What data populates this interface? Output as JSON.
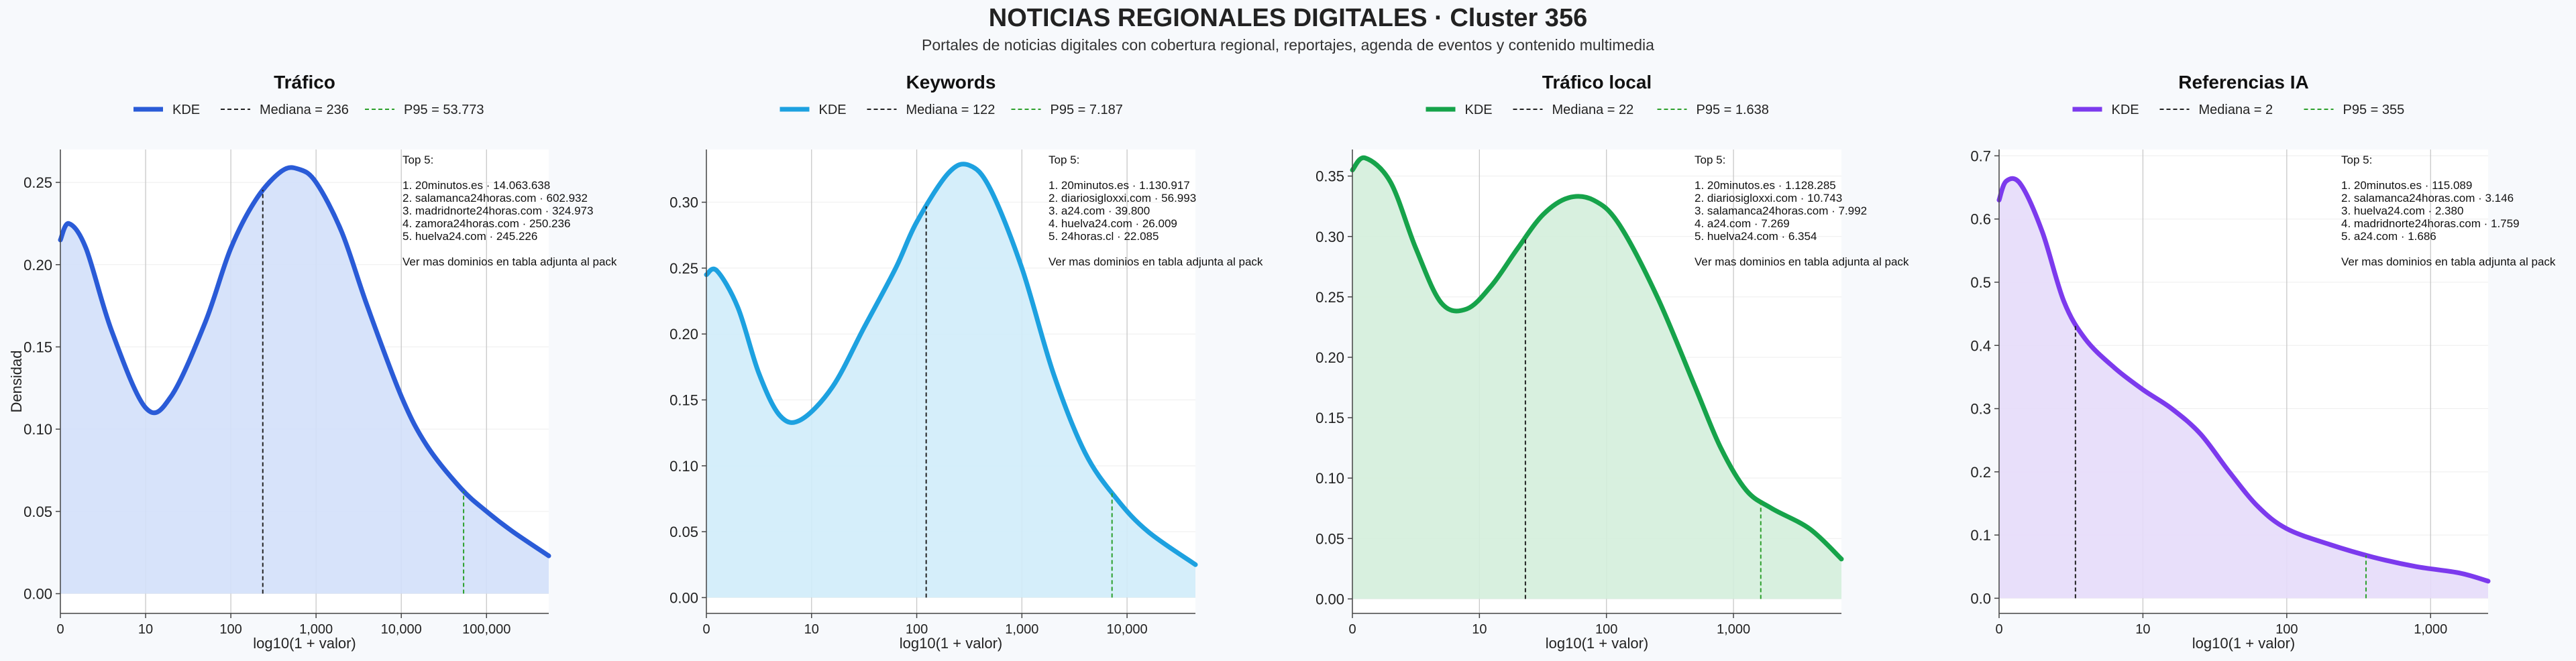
{
  "header": {
    "title": "NOTICIAS REGIONALES DIGITALES · Cluster 356",
    "subtitle": "Portales de noticias digitales con cobertura regional, reportajes, agenda de eventos y contenido multimedia"
  },
  "colors": {
    "background": "#f7f9fc",
    "median_line": "#222222",
    "p95_line": "#2ca02c",
    "grid": "#c8c8c8"
  },
  "chart_data": [
    {
      "type": "area",
      "title": "Tráfico",
      "color": "#2a5bd7",
      "fill": "#d3e0fa",
      "xlabel": "log10(1 + valor)",
      "ylabel": "Densidad",
      "xlim": [
        0,
        5.73
      ],
      "ylim": [
        -0.012,
        0.27
      ],
      "xticks": [
        0,
        1,
        2,
        3,
        4,
        5
      ],
      "xticklabels": [
        "0",
        "10",
        "100",
        "1,000",
        "10,000",
        "100,000"
      ],
      "yticks": [
        0,
        0.05,
        0.1,
        0.15,
        0.2,
        0.25
      ],
      "yticklabels": [
        "0.00",
        "0.05",
        "0.10",
        "0.15",
        "0.20",
        "0.25"
      ],
      "legend": {
        "placement": "top-center",
        "kde_label": "KDE",
        "median_label": "Mediana = 236",
        "p95_label": "P95 = 53.773"
      },
      "median_x": 2.375,
      "p95_x": 4.731,
      "kde_x": [
        0,
        0.1,
        0.3,
        0.6,
        1.0,
        1.3,
        1.7,
        2.0,
        2.3,
        2.6,
        2.8,
        3.0,
        3.3,
        3.6,
        4.0,
        4.3,
        4.7,
        5.0,
        5.3,
        5.73
      ],
      "kde_y": [
        0.215,
        0.225,
        0.21,
        0.16,
        0.113,
        0.12,
        0.165,
        0.21,
        0.24,
        0.257,
        0.258,
        0.25,
        0.22,
        0.175,
        0.12,
        0.09,
        0.064,
        0.05,
        0.038,
        0.023
      ],
      "annotation": [
        "Top 5:",
        "",
        "1. 20minutos.es · 14.063.638",
        "2. salamanca24horas.com · 602.932",
        "3. madridnorte24horas.com · 324.973",
        "4. zamora24horas.com · 250.236",
        "5. huelva24.com · 245.226",
        "",
        "Ver mas dominios en tabla adjunta al pack"
      ]
    },
    {
      "type": "area",
      "title": "Keywords",
      "color": "#1da1e0",
      "fill": "#d0ecfa",
      "xlabel": "log10(1 + valor)",
      "ylabel": "",
      "xlim": [
        0,
        4.65
      ],
      "ylim": [
        -0.012,
        0.34
      ],
      "xticks": [
        0,
        1,
        2,
        3,
        4
      ],
      "xticklabels": [
        "0",
        "10",
        "100",
        "1,000",
        "10,000"
      ],
      "yticks": [
        0,
        0.05,
        0.1,
        0.15,
        0.2,
        0.25,
        0.3
      ],
      "yticklabels": [
        "0.00",
        "0.05",
        "0.10",
        "0.15",
        "0.20",
        "0.25",
        "0.30"
      ],
      "legend": {
        "placement": "top-center",
        "kde_label": "KDE",
        "median_label": "Mediana = 122",
        "p95_label": "P95 = 7.187"
      },
      "median_x": 2.09,
      "p95_x": 3.857,
      "kde_x": [
        0,
        0.1,
        0.3,
        0.5,
        0.7,
        0.9,
        1.2,
        1.5,
        1.8,
        2.0,
        2.3,
        2.5,
        2.7,
        3.0,
        3.3,
        3.6,
        3.9,
        4.2,
        4.65
      ],
      "kde_y": [
        0.245,
        0.248,
        0.22,
        0.17,
        0.138,
        0.135,
        0.16,
        0.205,
        0.25,
        0.285,
        0.322,
        0.328,
        0.31,
        0.25,
        0.17,
        0.11,
        0.075,
        0.05,
        0.025
      ],
      "annotation": [
        "Top 5:",
        "",
        "1. 20minutos.es · 1.130.917",
        "2. diariosigloxxi.com · 56.993",
        "3. a24.com · 39.800",
        "4. huelva24.com · 26.009",
        "5. 24horas.cl · 22.085",
        "",
        "Ver mas dominios en tabla adjunta al pack"
      ]
    },
    {
      "type": "area",
      "title": "Tráfico local",
      "color": "#16a34a",
      "fill": "#d4eedb",
      "xlabel": "log10(1 + valor)",
      "ylabel": "",
      "xlim": [
        0,
        3.85
      ],
      "ylim": [
        -0.012,
        0.372
      ],
      "xticks": [
        0,
        1,
        2,
        3
      ],
      "xticklabels": [
        "0",
        "10",
        "100",
        "1,000"
      ],
      "yticks": [
        0,
        0.05,
        0.1,
        0.15,
        0.2,
        0.25,
        0.3,
        0.35
      ],
      "yticklabels": [
        "0.00",
        "0.05",
        "0.10",
        "0.15",
        "0.20",
        "0.25",
        "0.30",
        "0.35"
      ],
      "legend": {
        "placement": "top-center",
        "kde_label": "KDE",
        "median_label": "Mediana = 22",
        "p95_label": "P95 = 1.638"
      },
      "median_x": 1.362,
      "p95_x": 3.215,
      "kde_x": [
        0,
        0.1,
        0.3,
        0.5,
        0.7,
        0.9,
        1.1,
        1.3,
        1.5,
        1.7,
        1.9,
        2.1,
        2.4,
        2.7,
        2.9,
        3.1,
        3.3,
        3.6,
        3.85
      ],
      "kde_y": [
        0.355,
        0.365,
        0.345,
        0.29,
        0.245,
        0.24,
        0.26,
        0.29,
        0.318,
        0.332,
        0.33,
        0.31,
        0.25,
        0.175,
        0.125,
        0.09,
        0.075,
        0.058,
        0.033
      ],
      "annotation": [
        "Top 5:",
        "",
        "1. 20minutos.es · 1.128.285",
        "2. diariosigloxxi.com · 10.743",
        "3. salamanca24horas.com · 7.992",
        "4. a24.com · 7.269",
        "5. huelva24.com · 6.354",
        "",
        "Ver mas dominios en tabla adjunta al pack"
      ]
    },
    {
      "type": "area",
      "title": "Referencias IA",
      "color": "#7c3aed",
      "fill": "#e6dbfa",
      "xlabel": "log10(1 + valor)",
      "ylabel": "",
      "xlim": [
        0,
        3.4
      ],
      "ylim": [
        -0.024,
        0.71
      ],
      "xticks": [
        0,
        1,
        2,
        3
      ],
      "xticklabels": [
        "0",
        "10",
        "100",
        "1,000"
      ],
      "yticks": [
        0,
        0.1,
        0.2,
        0.3,
        0.4,
        0.5,
        0.6,
        0.7
      ],
      "yticklabels": [
        "0.0",
        "0.1",
        "0.2",
        "0.3",
        "0.4",
        "0.5",
        "0.6",
        "0.7"
      ],
      "legend": {
        "placement": "top-center",
        "kde_label": "KDE",
        "median_label": "Mediana = 2",
        "p95_label": "P95 = 355"
      },
      "median_x": 0.531,
      "p95_x": 2.551,
      "kde_x": [
        0,
        0.05,
        0.15,
        0.3,
        0.45,
        0.6,
        0.8,
        1.0,
        1.2,
        1.4,
        1.6,
        1.8,
        2.0,
        2.3,
        2.6,
        2.9,
        3.2,
        3.4
      ],
      "kde_y": [
        0.63,
        0.66,
        0.655,
        0.58,
        0.47,
        0.41,
        0.365,
        0.33,
        0.3,
        0.26,
        0.2,
        0.145,
        0.11,
        0.085,
        0.065,
        0.05,
        0.04,
        0.027
      ],
      "annotation": [
        "Top 5:",
        "",
        "1. 20minutos.es · 115.089",
        "2. salamanca24horas.com · 3.146",
        "3. huelva24.com · 2.380",
        "4. madridnorte24horas.com · 1.759",
        "5. a24.com · 1.686",
        "",
        "Ver mas dominios en tabla adjunta al pack"
      ]
    }
  ]
}
